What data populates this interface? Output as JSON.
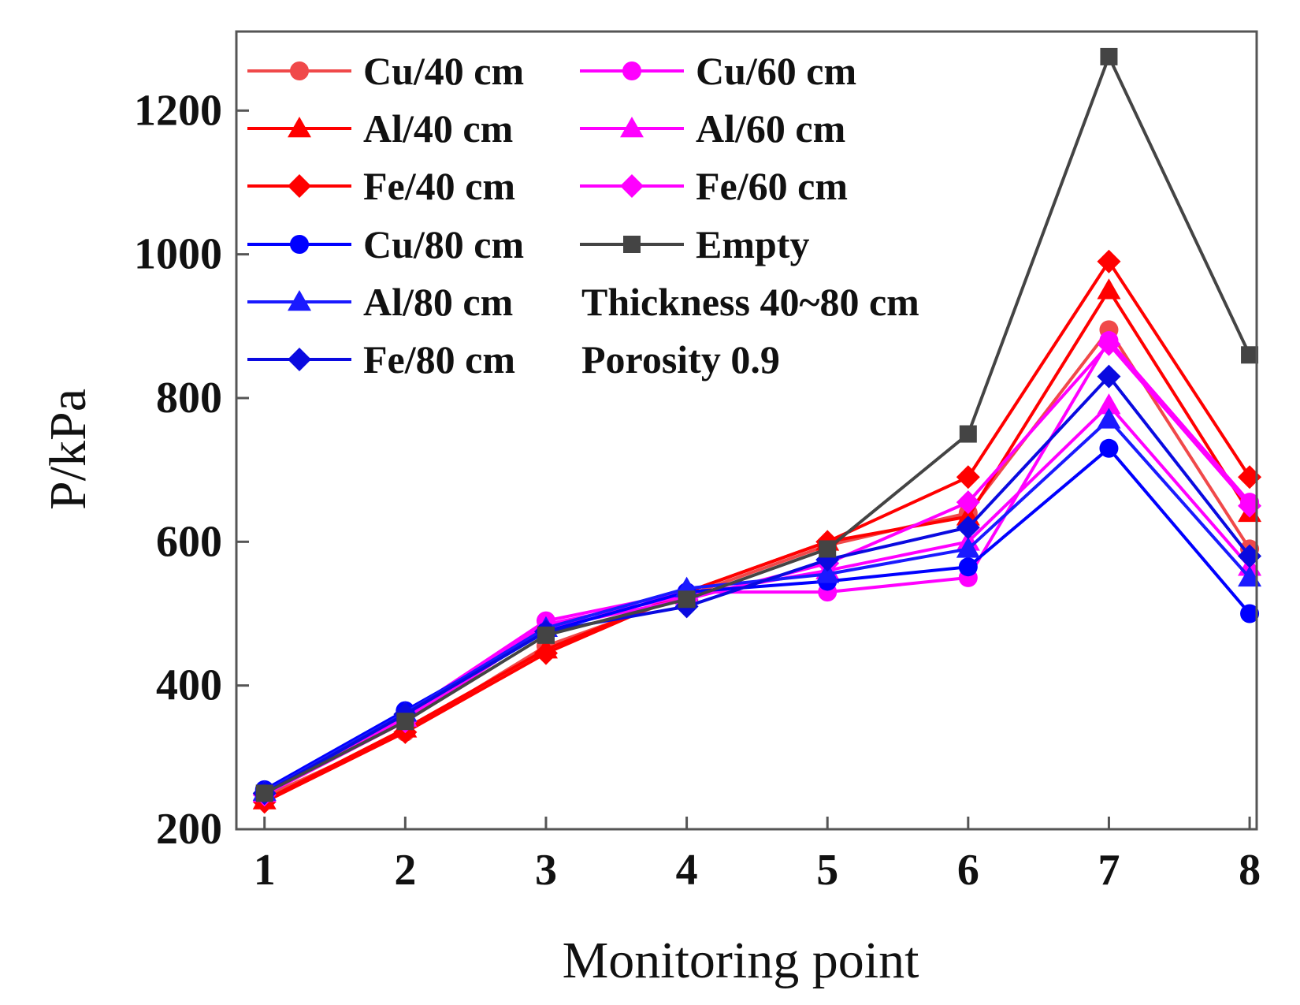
{
  "chart_data": {
    "type": "line",
    "title": "",
    "xlabel": "Monitoring point",
    "ylabel": "P/kPa",
    "x": [
      1,
      2,
      3,
      4,
      5,
      6,
      7,
      8
    ],
    "xticks": [
      "1",
      "2",
      "3",
      "4",
      "5",
      "6",
      "7",
      "8"
    ],
    "yticks": [
      "200",
      "400",
      "600",
      "800",
      "1000",
      "1200"
    ],
    "xlim": [
      0.8,
      8.05
    ],
    "ylim": [
      200,
      1310
    ],
    "grid": false,
    "legend_position": "top-left",
    "series": [
      {
        "name": "Cu/40 cm",
        "color": "#f0494a",
        "marker": "circle",
        "values": [
          245,
          335,
          455,
          525,
          595,
          640,
          895,
          590
        ]
      },
      {
        "name": "Al/40 cm",
        "color": "#ff0000",
        "marker": "triangle",
        "values": [
          240,
          340,
          450,
          530,
          600,
          635,
          950,
          640
        ]
      },
      {
        "name": "Fe/40 cm",
        "color": "#ff0000",
        "marker": "diamond",
        "values": [
          238,
          335,
          445,
          530,
          600,
          690,
          990,
          690
        ]
      },
      {
        "name": "Cu/60 cm",
        "color": "#ff00ff",
        "marker": "circle",
        "values": [
          250,
          360,
          490,
          530,
          530,
          550,
          880,
          655
        ]
      },
      {
        "name": "Al/60 cm",
        "color": "#ff00ff",
        "marker": "triangle",
        "values": [
          250,
          355,
          485,
          525,
          560,
          600,
          790,
          565
        ]
      },
      {
        "name": "Fe/60 cm",
        "color": "#ff00ff",
        "marker": "diamond",
        "values": [
          248,
          350,
          480,
          520,
          570,
          655,
          875,
          650
        ]
      },
      {
        "name": "Cu/80 cm",
        "color": "#0000ff",
        "marker": "circle",
        "values": [
          255,
          365,
          475,
          530,
          545,
          565,
          730,
          500
        ]
      },
      {
        "name": "Al/80 cm",
        "color": "#1a1aff",
        "marker": "triangle",
        "values": [
          252,
          362,
          480,
          535,
          555,
          590,
          770,
          550
        ]
      },
      {
        "name": "Fe/80 cm",
        "color": "#0a0ae0",
        "marker": "diamond",
        "values": [
          250,
          360,
          475,
          510,
          575,
          620,
          830,
          580
        ]
      },
      {
        "name": "Empty",
        "color": "#444444",
        "marker": "square",
        "values": [
          250,
          350,
          470,
          520,
          590,
          750,
          1275,
          860
        ]
      }
    ],
    "annotations": [
      "Thickness 40~80 cm",
      "Porosity 0.9"
    ]
  }
}
